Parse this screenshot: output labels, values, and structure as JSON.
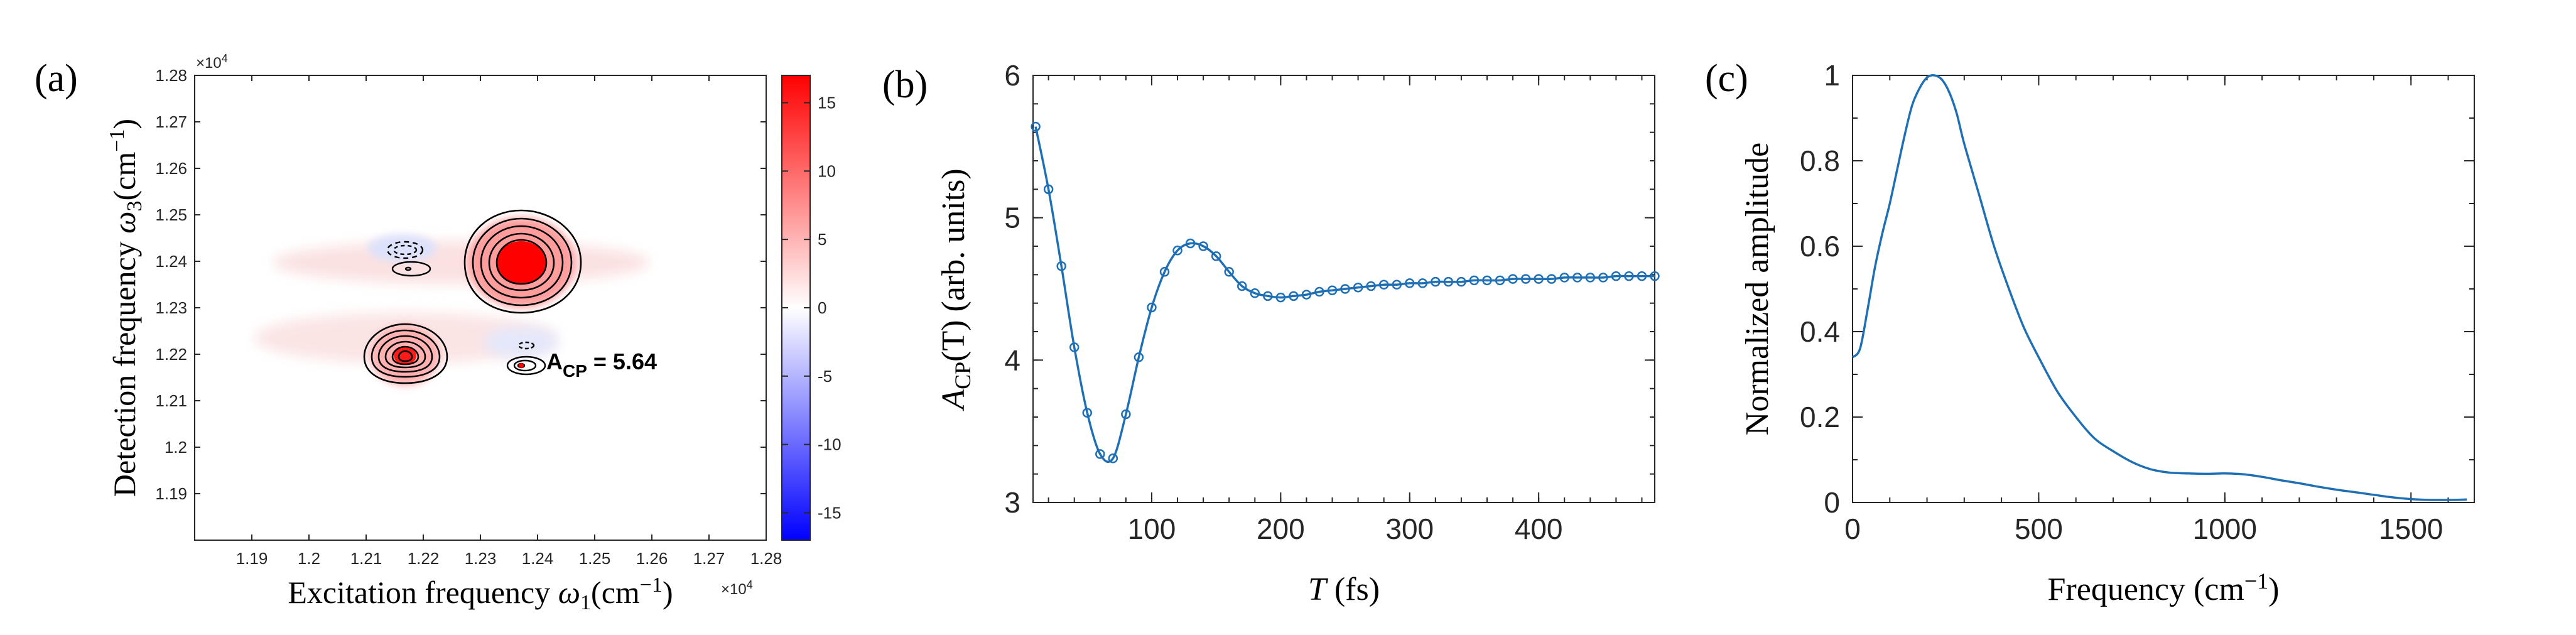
{
  "panels": {
    "a": {
      "label": "(a)",
      "xlabel_main": "Excitation frequency ",
      "xlabel_sym": "ω",
      "xlabel_sub": "1",
      "xlabel_unit": "(cm",
      "xlabel_sup": "−1",
      "xlabel_close": ")",
      "ylabel_main": "Detection frequency ",
      "ylabel_sym": "ω",
      "ylabel_sub": "3",
      "ylabel_unit": "(cm",
      "ylabel_sup": "−1",
      "ylabel_close": ")",
      "x_exponent": "×10",
      "x_exponent_power": "4",
      "y_exponent": "×10",
      "y_exponent_power": "4",
      "annotation_main": "A",
      "annotation_sub": "CP",
      "annotation_value": " = 5.64"
    },
    "b": {
      "label": "(b)",
      "xlabel_sym": "T",
      "xlabel_unit": " (fs)",
      "ylabel_sym": "A",
      "ylabel_sub": "CP",
      "ylabel_arg": "(T)",
      "ylabel_unit": " (arb. units)"
    },
    "c": {
      "label": "(c)",
      "xlabel_main": "Frequency (cm",
      "xlabel_sup": "−1",
      "xlabel_close": ")",
      "ylabel": "Normalized amplitude"
    }
  },
  "chart_data": [
    {
      "type": "heatmap",
      "panel": "a",
      "xlim": [
        1.18,
        1.28
      ],
      "ylim": [
        1.18,
        1.28
      ],
      "x_ticks": [
        "1.19",
        "1.2",
        "1.21",
        "1.22",
        "1.23",
        "1.24",
        "1.25",
        "1.26",
        "1.27",
        "1.28"
      ],
      "y_ticks": [
        "1.19",
        "1.2",
        "1.21",
        "1.22",
        "1.23",
        "1.24",
        "1.25",
        "1.26",
        "1.27",
        "1.28"
      ],
      "colorbar": {
        "range": [
          -17,
          17
        ],
        "ticks": [
          "15",
          "10",
          "5",
          "0",
          "-5",
          "-10",
          "-15"
        ],
        "colors": [
          "#0000ff",
          "#ffffff",
          "#ff0000"
        ]
      },
      "peaks": [
        {
          "x": 1.24,
          "y": 1.241,
          "amplitude": 17
        },
        {
          "x": 1.22,
          "y": 1.22,
          "amplitude": 14
        },
        {
          "x": 1.22,
          "y": 1.239,
          "amplitude": 2
        },
        {
          "x": 1.22,
          "y": 1.244,
          "amplitude": -3
        },
        {
          "x": 1.24,
          "y": 1.219,
          "amplitude": 2.5
        },
        {
          "x": 1.24,
          "y": 1.223,
          "amplitude": -1.5
        }
      ],
      "annotation_point": {
        "x": 1.24,
        "y": 1.219
      },
      "grid": false
    },
    {
      "type": "line",
      "panel": "b",
      "xlim": [
        8,
        490
      ],
      "ylim": [
        3,
        6
      ],
      "x_ticks": [
        100,
        200,
        300,
        400
      ],
      "y_ticks": [
        3,
        4,
        5,
        6
      ],
      "color": "#1f6fb5",
      "x": [
        10,
        20,
        30,
        40,
        50,
        60,
        70,
        80,
        90,
        100,
        110,
        120,
        130,
        140,
        150,
        160,
        170,
        180,
        190,
        200,
        210,
        220,
        230,
        240,
        250,
        260,
        270,
        280,
        290,
        300,
        310,
        320,
        330,
        340,
        350,
        360,
        370,
        380,
        390,
        400,
        410,
        420,
        430,
        440,
        450,
        460,
        470,
        480,
        490
      ],
      "y": [
        5.64,
        5.2,
        4.66,
        4.09,
        3.63,
        3.34,
        3.31,
        3.62,
        4.02,
        4.37,
        4.62,
        4.77,
        4.82,
        4.8,
        4.73,
        4.62,
        4.52,
        4.47,
        4.45,
        4.44,
        4.45,
        4.46,
        4.48,
        4.49,
        4.5,
        4.51,
        4.52,
        4.53,
        4.53,
        4.54,
        4.54,
        4.55,
        4.55,
        4.55,
        4.56,
        4.56,
        4.56,
        4.57,
        4.57,
        4.57,
        4.57,
        4.58,
        4.58,
        4.58,
        4.58,
        4.59,
        4.59,
        4.59,
        4.59
      ],
      "grid": false
    },
    {
      "type": "line",
      "panel": "c",
      "xlim": [
        0,
        1670
      ],
      "ylim": [
        0,
        1
      ],
      "x_ticks": [
        0,
        500,
        1000,
        1500
      ],
      "y_ticks": [
        "0",
        "0.2",
        "0.4",
        "0.6",
        "0.8",
        "1"
      ],
      "color": "#1f6fb5",
      "x": [
        0,
        20,
        40,
        60,
        80,
        100,
        120,
        140,
        160,
        180,
        200,
        220,
        240,
        260,
        280,
        300,
        340,
        380,
        420,
        460,
        500,
        550,
        600,
        650,
        700,
        750,
        800,
        850,
        900,
        950,
        1000,
        1050,
        1100,
        1150,
        1200,
        1250,
        1300,
        1350,
        1400,
        1450,
        1500,
        1550,
        1600,
        1650
      ],
      "y": [
        0.34,
        0.36,
        0.45,
        0.55,
        0.63,
        0.7,
        0.78,
        0.86,
        0.93,
        0.97,
        0.995,
        1.0,
        0.99,
        0.96,
        0.91,
        0.84,
        0.72,
        0.6,
        0.5,
        0.41,
        0.34,
        0.26,
        0.2,
        0.15,
        0.12,
        0.095,
        0.078,
        0.07,
        0.068,
        0.067,
        0.068,
        0.066,
        0.06,
        0.052,
        0.045,
        0.037,
        0.03,
        0.024,
        0.018,
        0.012,
        0.008,
        0.006,
        0.006,
        0.007
      ],
      "grid": false
    }
  ]
}
